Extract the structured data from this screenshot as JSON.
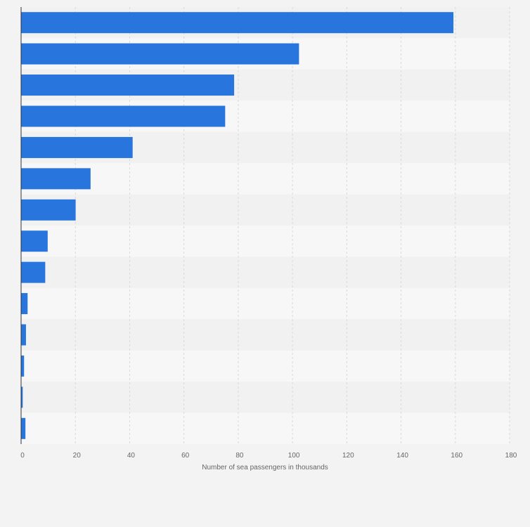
{
  "chart_data": {
    "type": "bar",
    "orientation": "horizontal",
    "title": "",
    "xlabel": "Number of sea passengers in thousands",
    "ylabel": "",
    "xlim": [
      0,
      180
    ],
    "xticks": [
      0,
      20,
      40,
      60,
      80,
      100,
      120,
      140,
      160,
      180
    ],
    "categories": [
      "",
      "",
      "",
      "",
      "",
      "",
      "",
      "",
      "",
      "",
      "",
      "",
      "",
      ""
    ],
    "values": [
      159.3,
      102.4,
      78.5,
      75.2,
      41.1,
      25.6,
      20.1,
      9.8,
      8.9,
      2.4,
      1.8,
      1.1,
      0.6,
      1.6
    ],
    "grid": true,
    "legend": "none",
    "colors": {
      "bar": "#2876dd",
      "background": "#f3f3f3",
      "band_light": "#f7f7f7",
      "band_dark": "#f1f1f1",
      "grid": "#d9d9d9",
      "axis": "#333333",
      "text": "#666666"
    }
  }
}
